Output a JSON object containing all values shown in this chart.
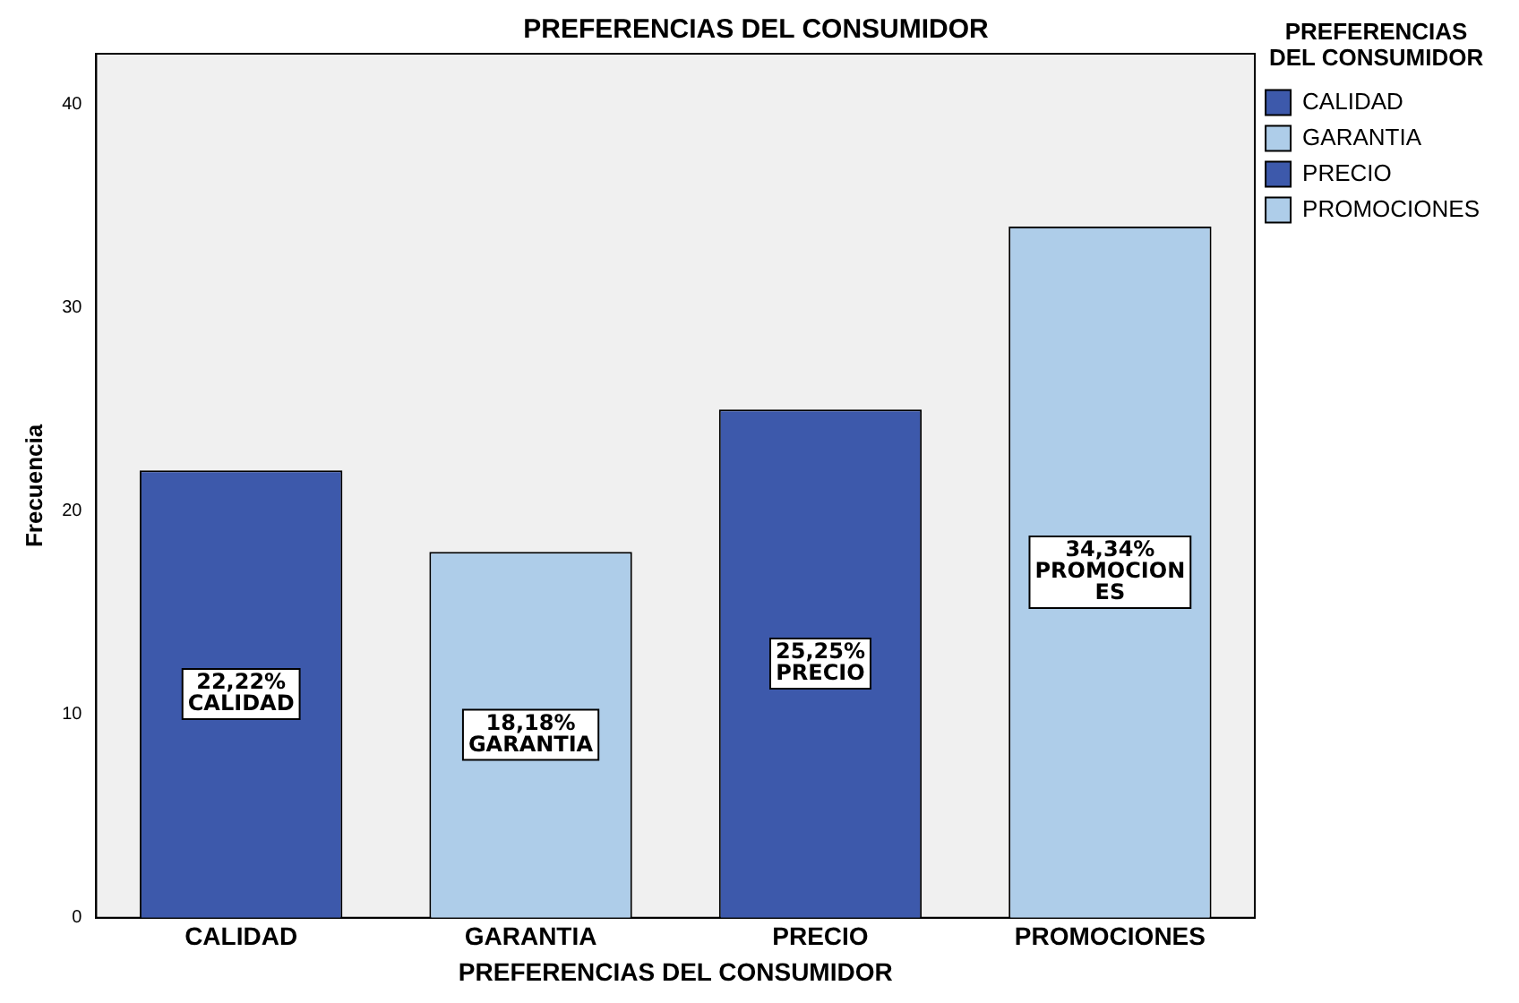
{
  "chart_data": {
    "type": "bar",
    "title": "PREFERENCIAS DEL CONSUMIDOR",
    "xlabel": "PREFERENCIAS DEL CONSUMIDOR",
    "ylabel": "Frecuencia",
    "legend_title": "PREFERENCIAS DEL CONSUMIDOR",
    "categories": [
      "CALIDAD",
      "GARANTIA",
      "PRECIO",
      "PROMOCIONES"
    ],
    "series": [
      {
        "name": "CALIDAD",
        "color": "#3d59ab",
        "values": [
          22,
          null,
          null,
          null
        ]
      },
      {
        "name": "GARANTIA",
        "color": "#aecde9",
        "values": [
          null,
          18,
          null,
          null
        ]
      },
      {
        "name": "PRECIO",
        "color": "#3d59ab",
        "values": [
          null,
          null,
          25,
          null
        ]
      },
      {
        "name": "PROMOCIONES",
        "color": "#aecde9",
        "values": [
          null,
          null,
          null,
          34
        ]
      }
    ],
    "annotations": [
      "22,22%\nCALIDAD",
      "18,18%\nGARANTIA",
      "25,25%\nPRECIO",
      "34,34%\nPROMOCION\nES"
    ],
    "ylim": [
      0,
      42.5
    ],
    "yticks": [
      0,
      10,
      20,
      30,
      40
    ],
    "grid": false,
    "legend": "top right"
  }
}
